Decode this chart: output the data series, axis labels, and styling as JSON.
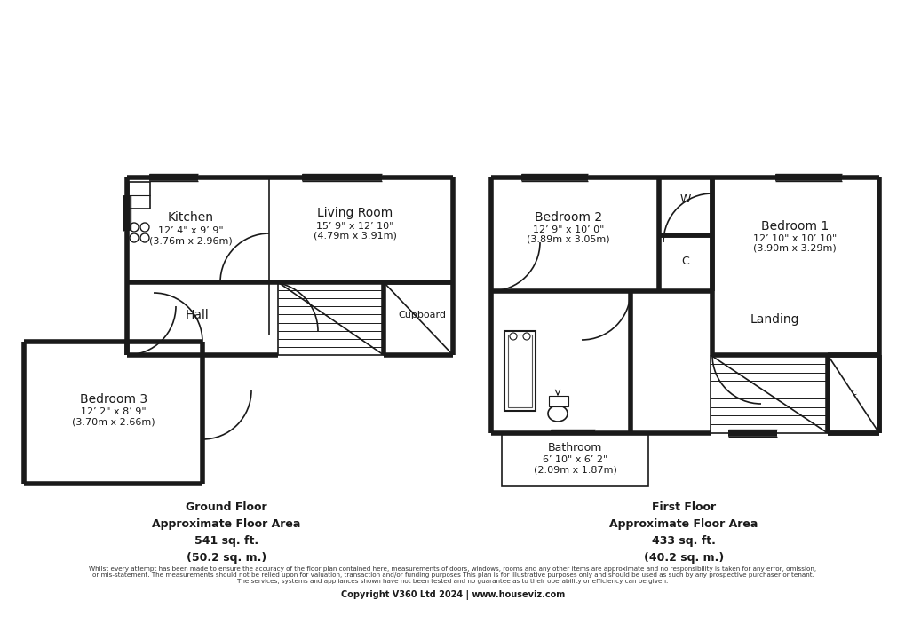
{
  "bg_color": "#ffffff",
  "wall_color": "#1a1a1a",
  "text_color": "#1a1a1a",
  "rooms": {
    "kitchen": {
      "label": "Kitchen",
      "line1": "12’ 4\" x 9’ 9\"",
      "line2": "(3.76m x 2.96m)"
    },
    "living": {
      "label": "Living Room",
      "line1": "15’ 9\" x 12’ 10\"",
      "line2": "(4.79m x 3.91m)"
    },
    "hall": {
      "label": "Hall",
      "line1": "",
      "line2": ""
    },
    "cupboard": {
      "label": "Cupboard",
      "line1": "",
      "line2": ""
    },
    "bedroom3": {
      "label": "Bedroom 3",
      "line1": "12’ 2\" x 8’ 9\"",
      "line2": "(3.70m x 2.66m)"
    },
    "bedroom2": {
      "label": "Bedroom 2",
      "line1": "12’ 9\" x 10’ 0\"",
      "line2": "(3.89m x 3.05m)"
    },
    "bedroom1": {
      "label": "Bedroom 1",
      "line1": "12’ 10\" x 10’ 10\"",
      "line2": "(3.90m x 3.29m)"
    },
    "bathroom": {
      "label": "Bathroom",
      "line1": "6’ 10\" x 6’ 2\"",
      "line2": "(2.09m x 1.87m)"
    },
    "landing": {
      "label": "Landing",
      "line1": "",
      "line2": ""
    },
    "wc": {
      "label": "W",
      "line1": "",
      "line2": ""
    },
    "cupboard_c": {
      "label": "C",
      "line1": "",
      "line2": ""
    },
    "cupboard_c2": {
      "label": "c",
      "line1": "",
      "line2": ""
    }
  },
  "ground_floor": {
    "title_line1": "Ground Floor",
    "title_line2": "Approximate Floor Area",
    "title_line3": "541 sq. ft.",
    "title_line4": "(50.2 sq. m.)"
  },
  "first_floor": {
    "title_line1": "First Floor",
    "title_line2": "Approximate Floor Area",
    "title_line3": "433 sq. ft.",
    "title_line4": "(40.2 sq. m.)"
  },
  "disclaimer_line1": "Whilst every attempt has been made to ensure the accuracy of the floor plan contained here, measurements of doors, windows, rooms and any other items are approximate and no responsibility is taken for any error, omission,",
  "disclaimer_line2": "or mis-statement. The measurements should not be relied upon for valuation, transaction and/or funding purposes This plan is for illustrative purposes only and should be used as such by any prospective purchaser or tenant.",
  "disclaimer_line3": "The services, systems and appliances shown have not been tested and no guarantee as to their operability or efficiency can be given.",
  "copyright": "Copyright V360 Ltd 2024 | www.houseviz.com"
}
